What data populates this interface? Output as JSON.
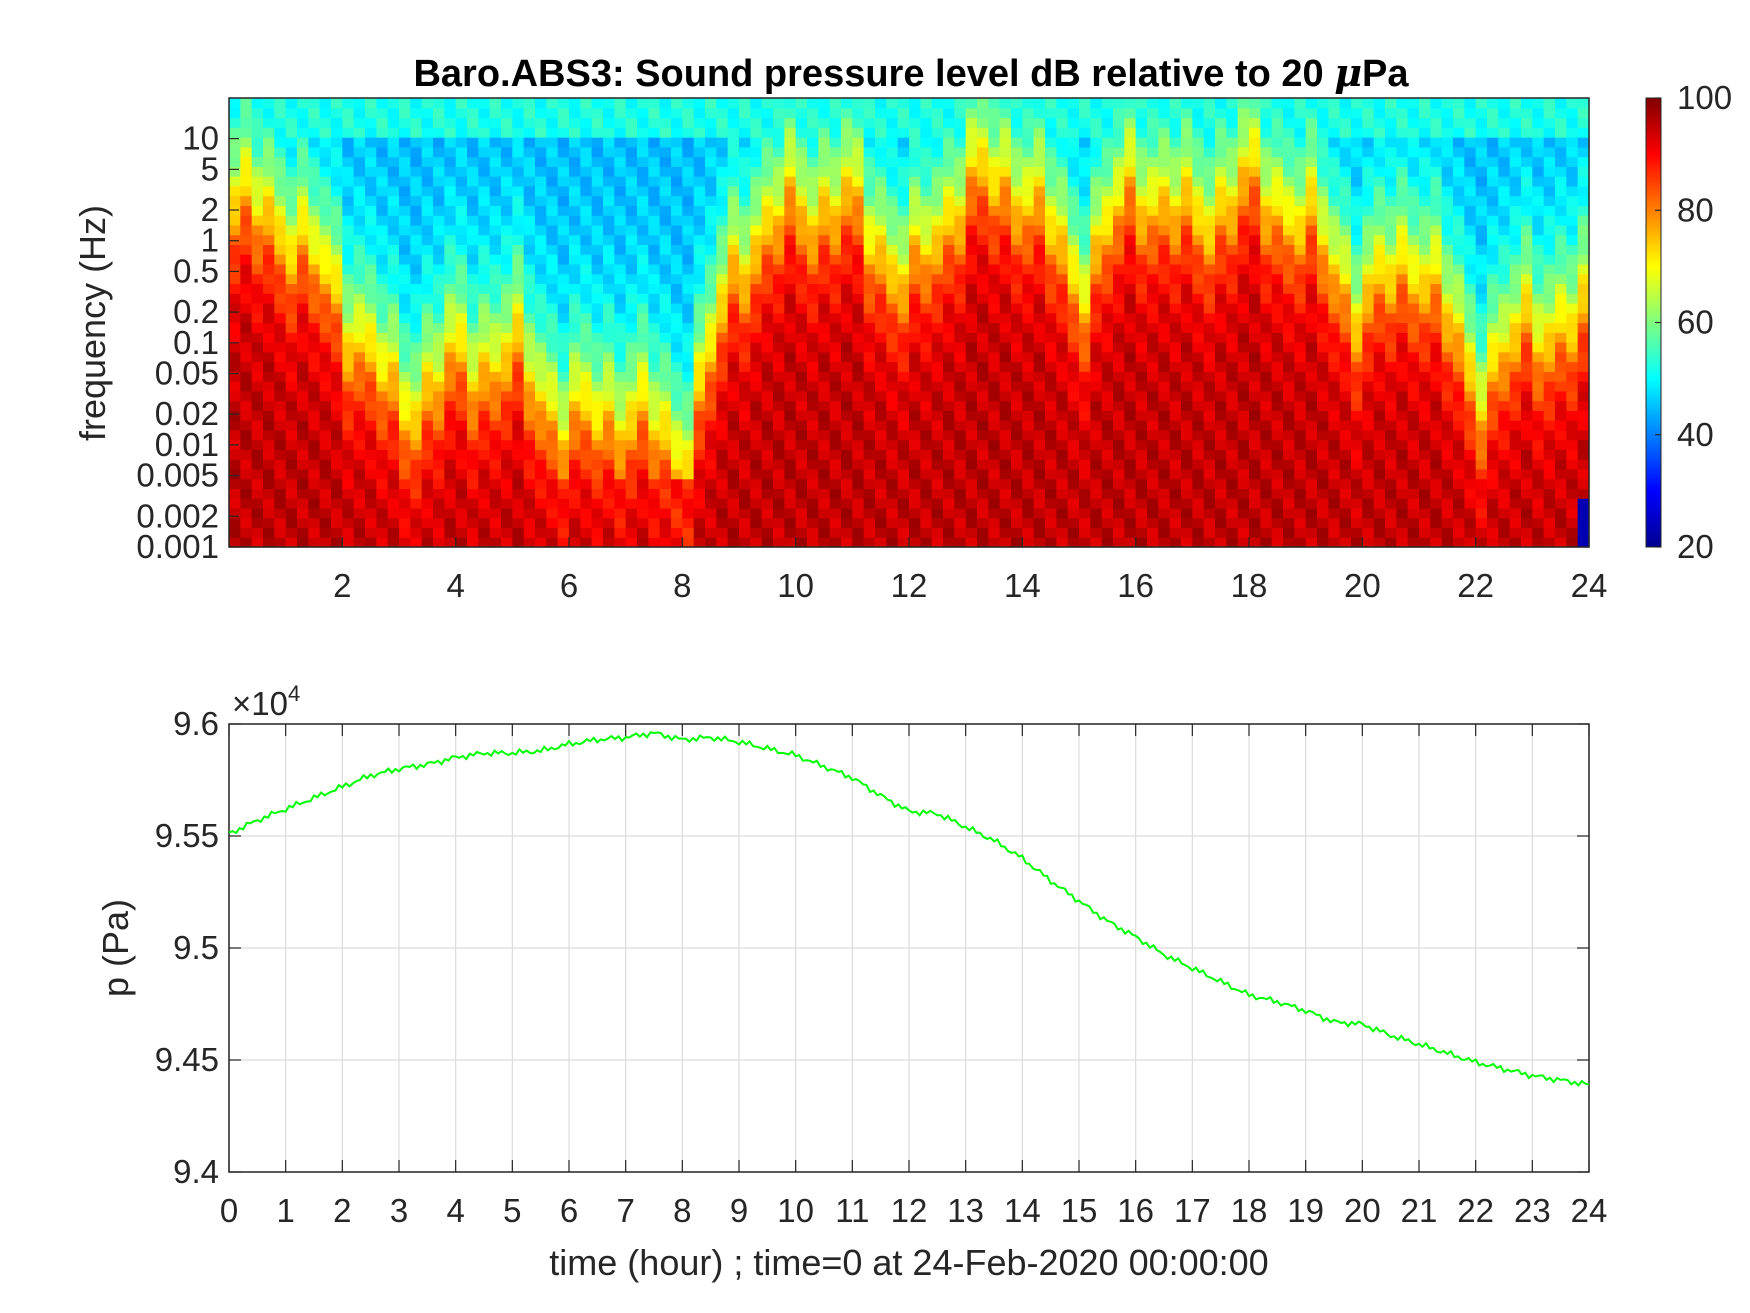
{
  "chart_data": [
    {
      "type": "heatmap",
      "title": "Baro.ABS3: Sound pressure level dB relative to 20 μPa",
      "title_parts": {
        "before": "Baro.ABS3: Sound pressure level dB relative to 20 ",
        "mu": "μ",
        "after": "Pa"
      },
      "xlabel": "",
      "ylabel": "frequency (Hz)",
      "x_ticks": [
        "2",
        "4",
        "6",
        "8",
        "10",
        "12",
        "14",
        "16",
        "18",
        "20",
        "22",
        "24"
      ],
      "x_tick_values": [
        2,
        4,
        6,
        8,
        10,
        12,
        14,
        16,
        18,
        20,
        22,
        24
      ],
      "xlim": [
        0,
        24
      ],
      "y_scale": "log",
      "ylim": [
        0.001,
        25
      ],
      "y_ticks": [
        "10",
        "5",
        "2",
        "1",
        "0.5",
        "0.2",
        "0.1",
        "0.05",
        "0.02",
        "0.01",
        "0.005",
        "0.002",
        "0.001"
      ],
      "y_tick_values": [
        10,
        5,
        2,
        1,
        0.5,
        0.2,
        0.1,
        0.05,
        0.02,
        0.01,
        0.005,
        0.002,
        0.001
      ],
      "colormap": "jet",
      "colorbar": {
        "limits": [
          20,
          100
        ],
        "ticks": [
          "100",
          "80",
          "60",
          "40",
          "20"
        ],
        "tick_values": [
          100,
          80,
          60,
          40,
          20
        ]
      },
      "approx_level_profile": {
        "hour": [
          0,
          1,
          2,
          3,
          4,
          5,
          6,
          7,
          8,
          9,
          10,
          11,
          12,
          13,
          14,
          15,
          16,
          17,
          18,
          19,
          20,
          21,
          22,
          23,
          24
        ],
        "transition_freq_hz": [
          3,
          2,
          0.3,
          0.03,
          0.08,
          0.1,
          0.02,
          0.03,
          0.01,
          1,
          3,
          3,
          0.5,
          5,
          5,
          0.5,
          5,
          2,
          5,
          2,
          0.3,
          1,
          0.05,
          0.2,
          0.2
        ]
      }
    },
    {
      "type": "line",
      "title": "",
      "xlabel": "time (hour) ; time=0 at 24-Feb-2020 00:00:00",
      "ylabel": "p (Pa)",
      "y_exponent": {
        "base": "×10",
        "power": "4"
      },
      "xlim": [
        0,
        24
      ],
      "ylim": [
        9.4,
        9.6
      ],
      "x_ticks": [
        "0",
        "1",
        "2",
        "3",
        "4",
        "5",
        "6",
        "7",
        "8",
        "9",
        "10",
        "11",
        "12",
        "13",
        "14",
        "15",
        "16",
        "17",
        "18",
        "19",
        "20",
        "21",
        "22",
        "23",
        "24"
      ],
      "x_tick_values": [
        0,
        1,
        2,
        3,
        4,
        5,
        6,
        7,
        8,
        9,
        10,
        11,
        12,
        13,
        14,
        15,
        16,
        17,
        18,
        19,
        20,
        21,
        22,
        23,
        24
      ],
      "y_ticks": [
        "9.6",
        "9.55",
        "9.5",
        "9.45",
        "9.4"
      ],
      "y_tick_values": [
        9.6,
        9.55,
        9.5,
        9.45,
        9.4
      ],
      "grid": true,
      "series": [
        {
          "color": "#00ff00",
          "x": [
            0,
            0.5,
            1,
            1.5,
            2,
            2.5,
            3,
            3.5,
            4,
            4.5,
            5,
            5.5,
            6,
            6.5,
            7,
            7.5,
            8,
            8.5,
            9,
            9.5,
            10,
            10.5,
            11,
            11.5,
            12,
            12.5,
            13,
            13.5,
            14,
            14.5,
            15,
            15.5,
            16,
            16.5,
            17,
            17.5,
            18,
            18.5,
            19,
            19.5,
            20,
            20.5,
            21,
            21.5,
            22,
            22.5,
            23,
            23.5,
            24
          ],
          "y": [
            9.551,
            9.557,
            9.562,
            9.567,
            9.572,
            9.577,
            9.58,
            9.582,
            9.585,
            9.587,
            9.587,
            9.588,
            9.591,
            9.593,
            9.594,
            9.596,
            9.593,
            9.594,
            9.592,
            9.589,
            9.586,
            9.581,
            9.576,
            9.568,
            9.561,
            9.56,
            9.554,
            9.548,
            9.54,
            9.53,
            9.521,
            9.512,
            9.505,
            9.497,
            9.491,
            9.485,
            9.479,
            9.476,
            9.472,
            9.467,
            9.466,
            9.461,
            9.457,
            9.453,
            9.449,
            9.446,
            9.443,
            9.441,
            9.439
          ]
        }
      ]
    }
  ]
}
